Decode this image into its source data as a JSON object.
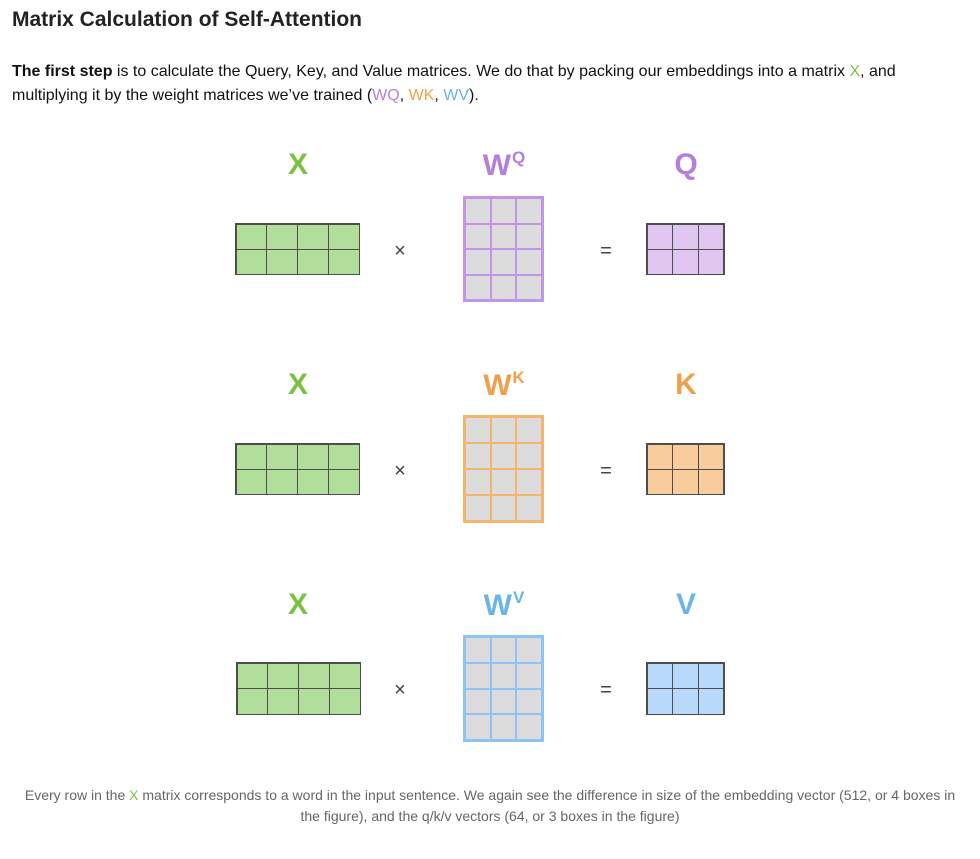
{
  "title": "Matrix Calculation of Self-Attention",
  "intro": {
    "bold": "The first step",
    "text_1": " is to calculate the Query, Key, and Value matrices. We do that by packing our embeddings into a matrix ",
    "x": "X",
    "text_2": ", and multiplying it by the weight matrices we’ve trained (",
    "wq": "WQ",
    "sep_1": ", ",
    "wk": "WK",
    "sep_2": ", ",
    "wv": "WV",
    "text_3": ")."
  },
  "colors": {
    "green": "#7ac143",
    "purple": "#b57edc",
    "orange": "#f0a04b",
    "blue": "#6ab4e8"
  },
  "rows": [
    {
      "x_label": "X",
      "w_label": "W",
      "w_sup": "Q",
      "out_label": "Q",
      "times": "×",
      "equals": "="
    },
    {
      "x_label": "X",
      "w_label": "W",
      "w_sup": "K",
      "out_label": "K",
      "times": "×",
      "equals": "="
    },
    {
      "x_label": "X",
      "w_label": "W",
      "w_sup": "V",
      "out_label": "V",
      "times": "×",
      "equals": "="
    }
  ],
  "caption": {
    "text_1": "Every row in the ",
    "x": "X",
    "text_2": " matrix corresponds to a word in the input sentence. We again see the difference in size of the embedding vector (512, or 4 boxes in the figure), and the q/k/v vectors (64, or 3 boxes in the figure)"
  }
}
